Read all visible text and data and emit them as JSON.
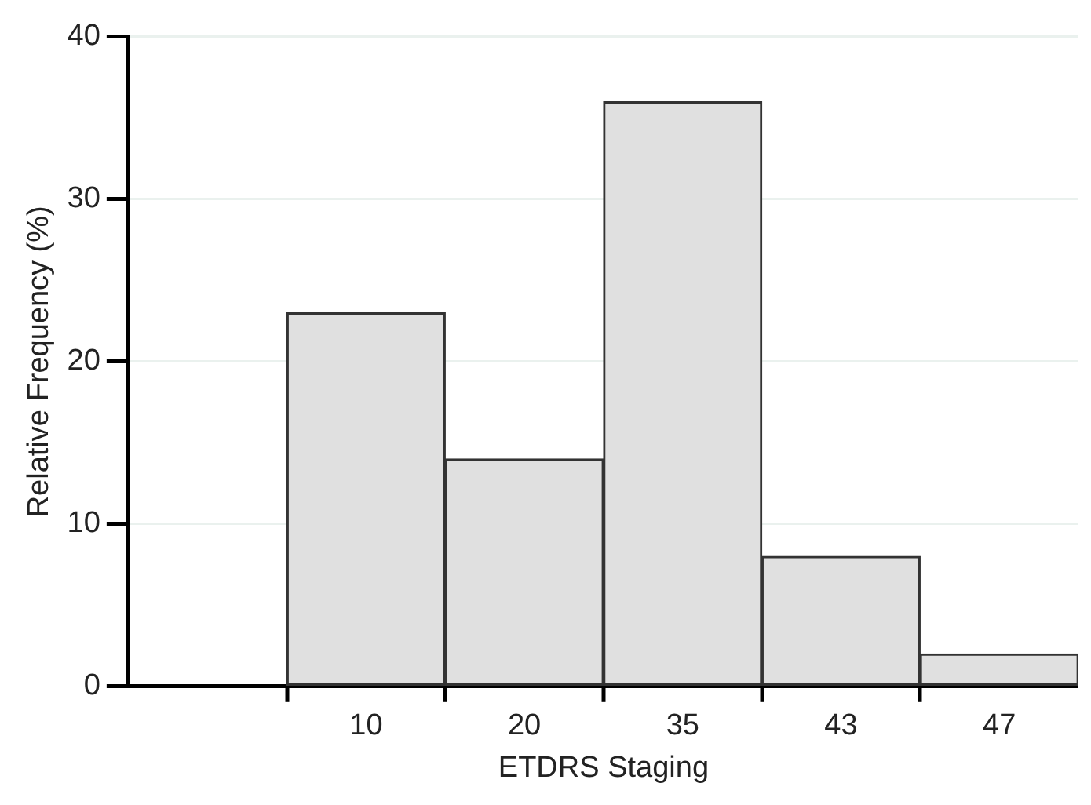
{
  "chart_data": {
    "type": "bar",
    "xlabel": "ETDRS Staging",
    "ylabel": "Relative Frequency (%)",
    "categories": [
      null,
      "10",
      "20",
      "35",
      "43",
      "47"
    ],
    "values": [
      null,
      23,
      14,
      36,
      8,
      2
    ],
    "color": "#e0e0e0",
    "ylim": [
      0,
      40
    ],
    "yticks": [
      0,
      10,
      20,
      30,
      40
    ],
    "grid": "y",
    "legend": false
  }
}
